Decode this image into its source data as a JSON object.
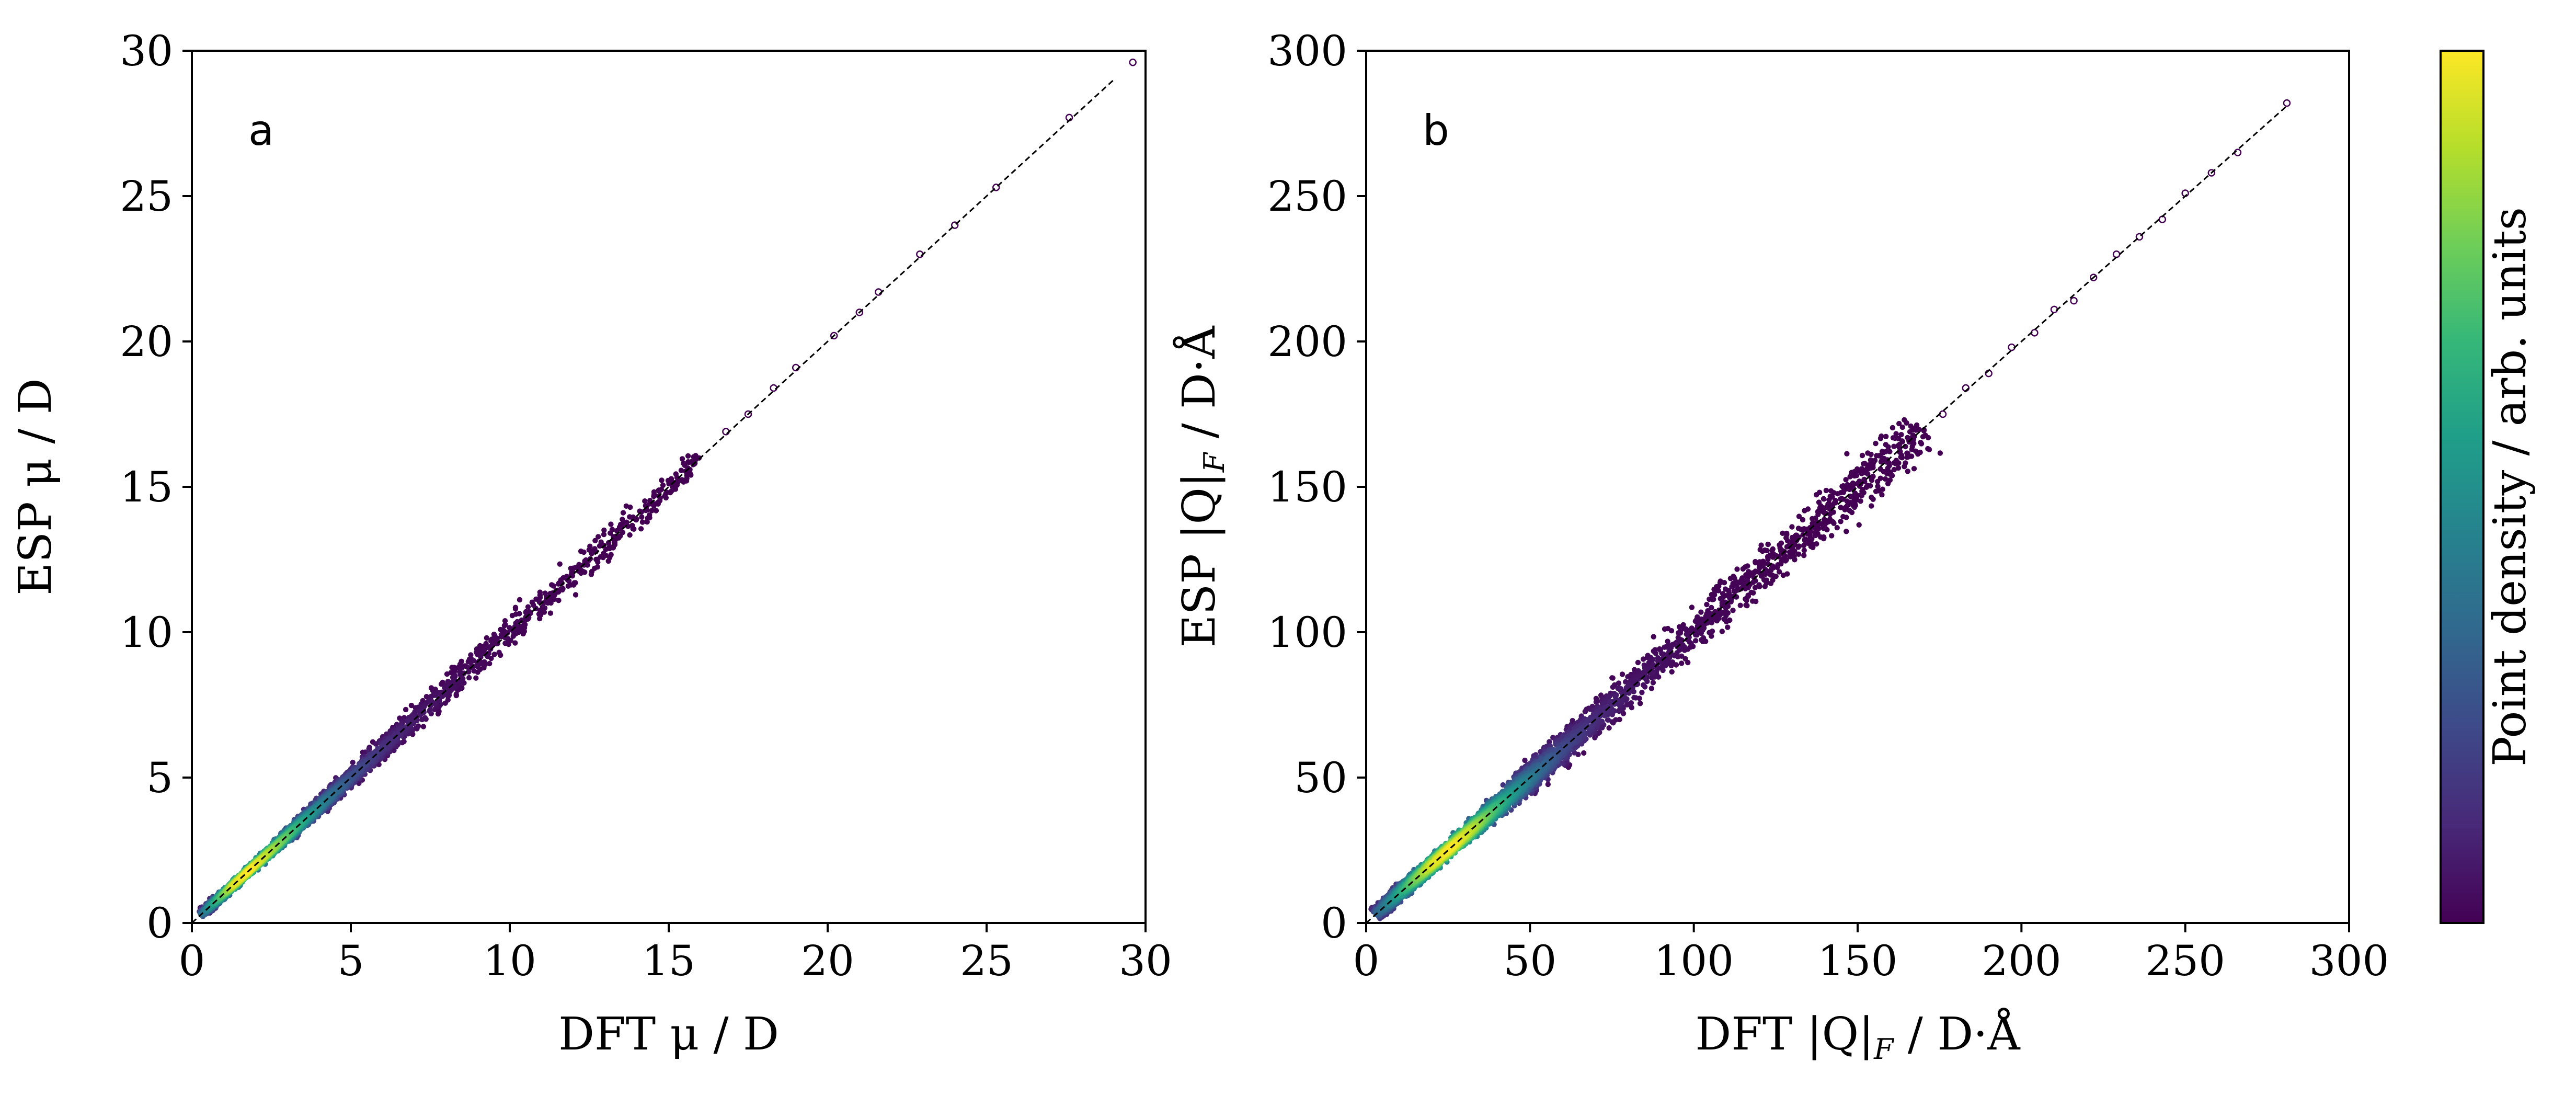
{
  "chart_data": [
    {
      "type": "scatter",
      "panel_label": "a",
      "xlabel": "DFT μ / D",
      "ylabel": "ESP μ / D",
      "xlim": [
        0,
        30
      ],
      "ylim": [
        0,
        30
      ],
      "xticks": [
        0,
        5,
        10,
        15,
        20,
        25,
        30
      ],
      "yticks": [
        0,
        5,
        10,
        15,
        20,
        25,
        30
      ],
      "grid": false,
      "reference_line": {
        "style": "dashed",
        "color": "#000000",
        "from": [
          0,
          0
        ],
        "to": [
          29,
          29
        ]
      },
      "density_ridge": [
        {
          "x": 0.3,
          "y": 0.3,
          "d": 0.35
        },
        {
          "x": 0.8,
          "y": 0.8,
          "d": 0.65
        },
        {
          "x": 1.3,
          "y": 1.3,
          "d": 0.95
        },
        {
          "x": 1.8,
          "y": 1.8,
          "d": 1.0
        },
        {
          "x": 2.4,
          "y": 2.4,
          "d": 0.88
        },
        {
          "x": 3.0,
          "y": 3.0,
          "d": 0.72
        },
        {
          "x": 3.6,
          "y": 3.6,
          "d": 0.55
        },
        {
          "x": 4.3,
          "y": 4.3,
          "d": 0.38
        },
        {
          "x": 5.0,
          "y": 5.0,
          "d": 0.25
        },
        {
          "x": 6.0,
          "y": 6.0,
          "d": 0.14
        },
        {
          "x": 7.0,
          "y": 7.0,
          "d": 0.07
        },
        {
          "x": 8.5,
          "y": 8.5,
          "d": 0.03
        },
        {
          "x": 10.5,
          "y": 10.5,
          "d": 0.01
        },
        {
          "x": 13.0,
          "y": 13.0,
          "d": 0.0
        },
        {
          "x": 16.0,
          "y": 16.0,
          "d": 0.0
        }
      ],
      "outliers": [
        {
          "x": 16.8,
          "y": 16.9
        },
        {
          "x": 17.5,
          "y": 17.5
        },
        {
          "x": 18.3,
          "y": 18.4
        },
        {
          "x": 19.0,
          "y": 19.1
        },
        {
          "x": 20.2,
          "y": 20.2
        },
        {
          "x": 21.0,
          "y": 21.0
        },
        {
          "x": 21.6,
          "y": 21.7
        },
        {
          "x": 22.9,
          "y": 23.0
        },
        {
          "x": 24.0,
          "y": 24.0
        },
        {
          "x": 25.3,
          "y": 25.3
        },
        {
          "x": 27.6,
          "y": 27.7
        },
        {
          "x": 29.6,
          "y": 29.6
        }
      ]
    },
    {
      "type": "scatter",
      "panel_label": "b",
      "xlabel": "DFT |Q|",
      "xlabel_subscript": "F",
      "xlabel_suffix": " / D·Å",
      "ylabel": "ESP |Q|",
      "ylabel_subscript": "F",
      "ylabel_suffix": " / D·Å",
      "xlim": [
        0,
        300
      ],
      "ylim": [
        0,
        300
      ],
      "xticks": [
        0,
        50,
        100,
        150,
        200,
        250,
        300
      ],
      "yticks": [
        0,
        50,
        100,
        150,
        200,
        250,
        300
      ],
      "grid": false,
      "reference_line": {
        "style": "dashed",
        "color": "#000000",
        "from": [
          0,
          0
        ],
        "to": [
          281,
          281
        ]
      },
      "density_ridge": [
        {
          "x": 3,
          "y": 3,
          "d": 0.3
        },
        {
          "x": 8,
          "y": 8,
          "d": 0.5
        },
        {
          "x": 14,
          "y": 14,
          "d": 0.75
        },
        {
          "x": 20,
          "y": 20,
          "d": 0.95
        },
        {
          "x": 26,
          "y": 26,
          "d": 1.0
        },
        {
          "x": 32,
          "y": 32,
          "d": 0.9
        },
        {
          "x": 38,
          "y": 38,
          "d": 0.72
        },
        {
          "x": 45,
          "y": 45,
          "d": 0.52
        },
        {
          "x": 52,
          "y": 52,
          "d": 0.36
        },
        {
          "x": 60,
          "y": 60,
          "d": 0.22
        },
        {
          "x": 70,
          "y": 70,
          "d": 0.12
        },
        {
          "x": 82,
          "y": 82,
          "d": 0.06
        },
        {
          "x": 95,
          "y": 95,
          "d": 0.03
        },
        {
          "x": 110,
          "y": 110,
          "d": 0.01
        },
        {
          "x": 125,
          "y": 125,
          "d": 0.0
        },
        {
          "x": 140,
          "y": 140,
          "d": 0.0
        },
        {
          "x": 155,
          "y": 155,
          "d": 0.0
        },
        {
          "x": 170,
          "y": 170,
          "d": 0.0
        }
      ],
      "outliers": [
        {
          "x": 176,
          "y": 175
        },
        {
          "x": 183,
          "y": 184
        },
        {
          "x": 190,
          "y": 189
        },
        {
          "x": 197,
          "y": 198
        },
        {
          "x": 204,
          "y": 203
        },
        {
          "x": 210,
          "y": 211
        },
        {
          "x": 216,
          "y": 214
        },
        {
          "x": 222,
          "y": 222
        },
        {
          "x": 229,
          "y": 230
        },
        {
          "x": 236,
          "y": 236
        },
        {
          "x": 243,
          "y": 242
        },
        {
          "x": 250,
          "y": 251
        },
        {
          "x": 258,
          "y": 258
        },
        {
          "x": 266,
          "y": 265
        },
        {
          "x": 281,
          "y": 282
        }
      ]
    }
  ],
  "colorbar": {
    "label": "Point density / arb. units",
    "colormap": "viridis",
    "stops": [
      "#440154",
      "#482878",
      "#3e4989",
      "#31688e",
      "#26828e",
      "#1f9e89",
      "#35b779",
      "#6ece58",
      "#b5de2b",
      "#fde725"
    ]
  }
}
